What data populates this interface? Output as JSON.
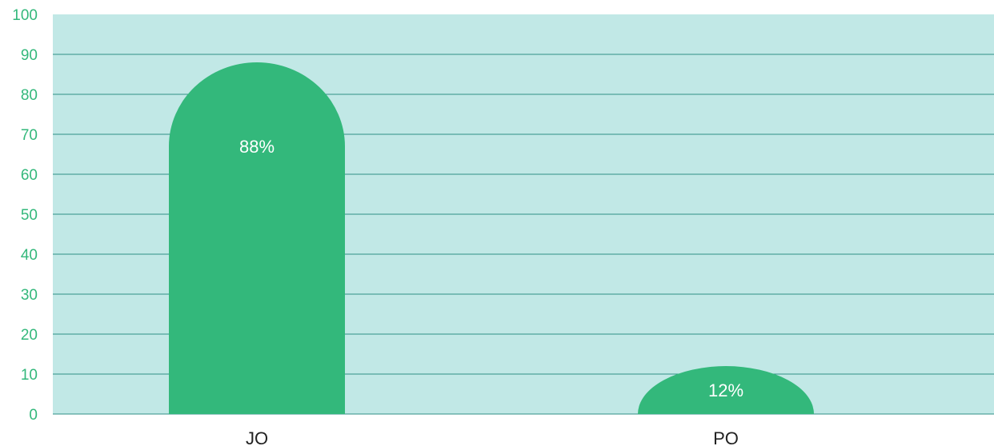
{
  "chart_data": {
    "type": "bar",
    "categories": [
      "JO",
      "PO"
    ],
    "values": [
      88,
      12
    ],
    "data_labels": [
      "88%",
      "12%"
    ],
    "title": "",
    "xlabel": "",
    "ylabel": "",
    "ylim": [
      0,
      100
    ],
    "yticks": [
      0,
      10,
      20,
      30,
      40,
      50,
      60,
      70,
      80,
      90,
      100
    ],
    "grid": true,
    "legend": "none",
    "bar_shape": "rounded-top",
    "colors": {
      "bar": "#33b87b",
      "plot_background": "#c1e8e6",
      "gridline": "#2f8f87",
      "ytick_text": "#33b87b",
      "xtick_text": "#222222",
      "data_label_text": "#ffffff"
    }
  }
}
